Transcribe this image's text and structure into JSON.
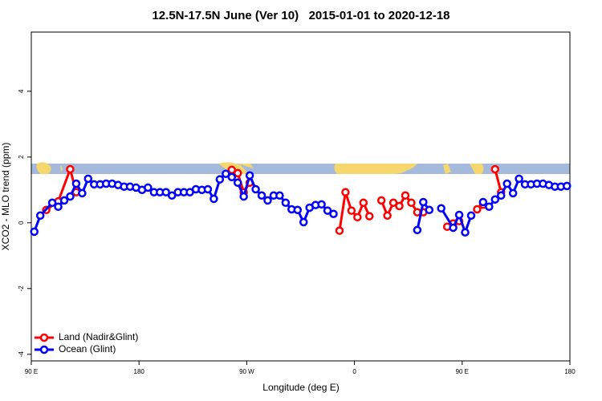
{
  "chart_data": {
    "type": "line",
    "title": "12.5N-17.5N June (Ver 10)   2015-01-01 to 2020-12-18",
    "xlabel": "Longitude (deg E)",
    "ylabel": "XCO2 - MLO trend (ppm)",
    "xlim": [
      90,
      540
    ],
    "ylim": [
      -4.2,
      5.8
    ],
    "xticks": [
      {
        "value": 90,
        "label": "90 E"
      },
      {
        "value": 180,
        "label": "180"
      },
      {
        "value": 270,
        "label": "90 W"
      },
      {
        "value": 360,
        "label": "0"
      },
      {
        "value": 450,
        "label": "90 E"
      },
      {
        "value": 540,
        "label": "180"
      }
    ],
    "yticks": [
      -4,
      -2,
      0,
      2,
      4
    ],
    "legend": "bottomleft",
    "series": [
      {
        "name": "Land (Nadir&Glint)",
        "color": "#ff0000",
        "x": [
          102.5,
          112.5,
          122.5,
          127.5,
          null,
          257.5,
          262.5,
          267.5,
          272.5,
          null,
          347.5,
          352.5,
          357.5,
          362.5,
          367.5,
          372.5,
          null,
          382.5,
          387.5,
          392.5,
          397.5,
          402.5,
          407.5,
          412.5,
          417.5,
          null,
          437.5,
          442.5,
          447.5,
          null,
          462.5,
          467.5,
          null,
          477.5,
          482.5
        ],
        "values": [
          0.39,
          0.65,
          1.63,
          0.93,
          null,
          1.61,
          1.51,
          0.93,
          1.22,
          null,
          -0.24,
          0.93,
          0.37,
          0.17,
          0.61,
          0.2,
          null,
          0.68,
          0.22,
          0.61,
          0.51,
          0.83,
          0.61,
          0.32,
          0.32,
          null,
          -0.12,
          -0.02,
          0.05,
          null,
          0.41,
          0.55,
          null,
          1.63,
          0.93
        ]
      },
      {
        "name": "Ocean (Glint)",
        "color": "#0000ff",
        "x": [
          92.5,
          97.5,
          107.5,
          112.5,
          117.5,
          122.5,
          127.5,
          132.5,
          137.5,
          142.5,
          147.5,
          152.5,
          157.5,
          162.5,
          167.5,
          172.5,
          177.5,
          182.5,
          187.5,
          192.5,
          197.5,
          202.5,
          207.5,
          212.5,
          217.5,
          222.5,
          227.5,
          232.5,
          237.5,
          242.5,
          247.5,
          252.5,
          257.5,
          262.5,
          267.5,
          272.5,
          277.5,
          282.5,
          287.5,
          292.5,
          297.5,
          302.5,
          307.5,
          312.5,
          317.5,
          322.5,
          327.5,
          332.5,
          337.5,
          342.5,
          null,
          412.5,
          417.5,
          422.5,
          null,
          432.5,
          442.5,
          447.5,
          452.5,
          457.5,
          null,
          467.5,
          472.5,
          477.5,
          482.5,
          487.5,
          492.5,
          497.5,
          502.5,
          507.5,
          512.5,
          517.5,
          522.5,
          527.5,
          532.5,
          537.5
        ],
        "values": [
          -0.27,
          0.22,
          0.61,
          0.49,
          0.68,
          0.8,
          1.19,
          0.9,
          1.34,
          1.17,
          1.17,
          1.19,
          1.19,
          1.15,
          1.1,
          1.1,
          1.07,
          1.0,
          1.07,
          0.93,
          0.93,
          0.93,
          0.83,
          0.93,
          0.93,
          0.93,
          1.02,
          1.0,
          1.02,
          0.73,
          1.32,
          1.49,
          1.39,
          1.22,
          0.8,
          1.44,
          1.02,
          0.83,
          0.68,
          0.83,
          0.83,
          0.61,
          0.41,
          0.39,
          0.02,
          0.46,
          0.54,
          0.56,
          0.37,
          0.27,
          null,
          -0.22,
          0.63,
          0.39,
          null,
          0.44,
          -0.15,
          0.24,
          -0.29,
          0.22,
          null,
          0.63,
          0.49,
          0.71,
          0.83,
          1.19,
          0.9,
          1.34,
          1.17,
          1.17,
          1.19,
          1.19,
          1.15,
          1.1,
          1.1,
          1.12
        ]
      }
    ]
  }
}
